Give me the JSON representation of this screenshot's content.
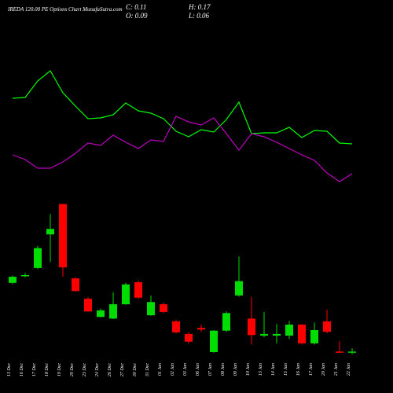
{
  "chart_data": {
    "type": "candlestick",
    "title": "IREDA 120.00 PE Options Chart MunafaSutra.com",
    "ohlc_text": [
      "C: 0.11",
      "H: 0.17",
      "O: 0.09",
      "L: 0.06"
    ],
    "categories": [
      "13 Dec",
      "16 Dec",
      "17 Dec",
      "18 Dec",
      "19 Dec",
      "20 Dec",
      "23 Dec",
      "24 Dec",
      "26 Dec",
      "27 Dec",
      "30 Dec",
      "31 Dec",
      "01 Jan",
      "02 Jan",
      "03 Jan",
      "06 Jan",
      "07 Jan",
      "08 Jan",
      "09 Jan",
      "10 Jan",
      "13 Jan",
      "14 Jan",
      "15 Jan",
      "16 Jan",
      "17 Jan",
      "20 Jan",
      "21 Jan",
      "22 Jan"
    ],
    "open": [
      1.36,
      1.49,
      1.63,
      2.24,
      2.79,
      1.44,
      1.07,
      0.74,
      0.71,
      0.97,
      1.37,
      0.77,
      0.97,
      0.66,
      0.43,
      0.54,
      0.1,
      0.49,
      1.13,
      0.71,
      0.4,
      0.4,
      0.4,
      0.6,
      0.26,
      0.66,
      0.11,
      0.09
    ],
    "high": [
      1.49,
      1.54,
      2.03,
      2.61,
      2.8,
      1.46,
      1.1,
      0.89,
      1.19,
      1.36,
      1.4,
      1.13,
      1.0,
      0.69,
      0.46,
      0.6,
      0.5,
      0.84,
      1.84,
      1.1,
      0.83,
      0.61,
      0.67,
      0.61,
      0.64,
      0.87,
      0.3,
      0.17
    ],
    "low": [
      1.34,
      1.46,
      1.61,
      1.74,
      1.47,
      1.2,
      0.83,
      0.73,
      0.7,
      0.96,
      1.07,
      0.76,
      0.81,
      0.44,
      0.26,
      0.47,
      0.09,
      0.47,
      1.11,
      0.24,
      0.37,
      0.26,
      0.34,
      0.24,
      0.24,
      0.44,
      0.09,
      0.06
    ],
    "close": [
      1.47,
      1.5,
      1.99,
      2.34,
      1.64,
      1.21,
      0.84,
      0.86,
      0.97,
      1.33,
      1.09,
      1.01,
      0.83,
      0.46,
      0.29,
      0.51,
      0.49,
      0.81,
      1.39,
      0.41,
      0.43,
      0.43,
      0.6,
      0.26,
      0.5,
      0.47,
      0.1,
      0.11
    ],
    "ylim": [
      0,
      3
    ],
    "up_color": "#00dd00",
    "down_color": "#ff0000",
    "lines": [
      {
        "color": "#00ff00",
        "axis": "y2",
        "values": [
          175,
          176,
          197,
          210,
          182,
          165,
          149,
          150,
          154,
          169,
          159,
          156,
          149,
          133,
          126,
          135,
          132,
          148,
          170,
          130,
          131,
          131,
          138,
          125,
          134,
          133,
          118,
          117
        ]
      },
      {
        "color": "#c000c0",
        "axis": "y2",
        "values": [
          103,
          97,
          86,
          86,
          94,
          105,
          118,
          115,
          128,
          119,
          111,
          122,
          120,
          152,
          145,
          141,
          150,
          130,
          109,
          130,
          126,
          119,
          111,
          103,
          96,
          80,
          69,
          79
        ]
      }
    ],
    "y2lim": [
      0,
      250
    ]
  }
}
